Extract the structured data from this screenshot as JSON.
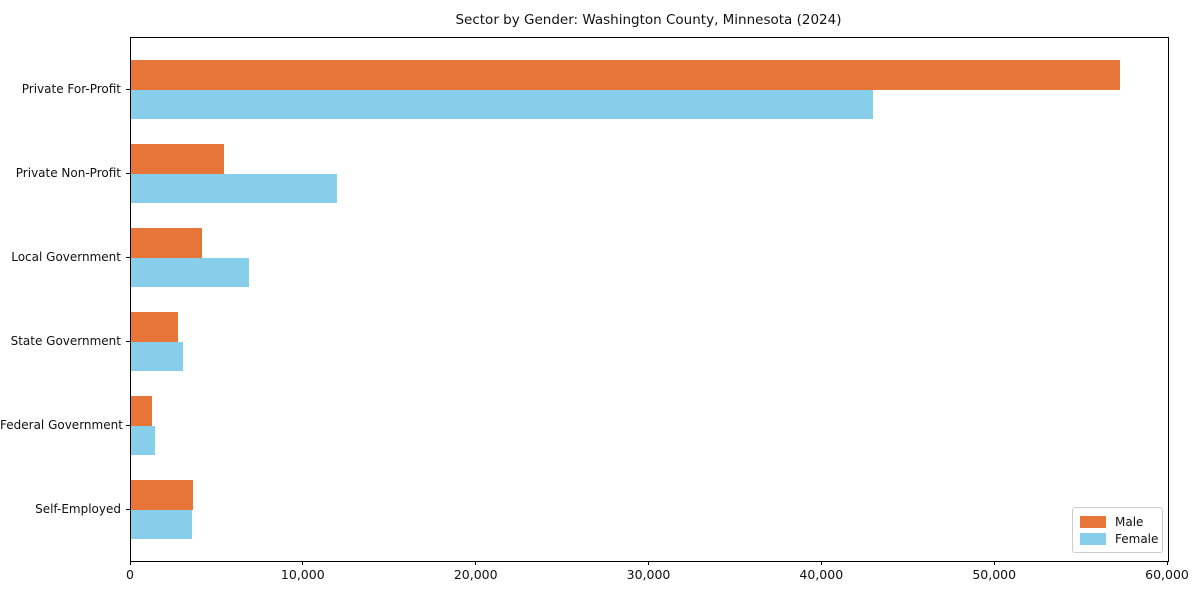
{
  "chart_data": {
    "type": "bar",
    "orientation": "horizontal",
    "title": "Sector by Gender: Washington County, Minnesota (2024)",
    "xlabel": "",
    "ylabel": "",
    "categories": [
      "Private For-Profit",
      "Private Non-Profit",
      "Local Government",
      "State Government",
      "Federal Government",
      "Self-Employed"
    ],
    "series": [
      {
        "name": "Male",
        "color": "#E8763A",
        "values": [
          57200,
          5400,
          4100,
          2700,
          1200,
          3600
        ]
      },
      {
        "name": "Female",
        "color": "#87CEEB",
        "values": [
          42900,
          11900,
          6800,
          3000,
          1400,
          3500
        ]
      }
    ],
    "xlim": [
      0,
      60000
    ],
    "x_ticks": [
      0,
      10000,
      20000,
      30000,
      40000,
      50000,
      60000
    ],
    "x_tick_labels": [
      "0",
      "10,000",
      "20,000",
      "30,000",
      "40,000",
      "50,000",
      "60,000"
    ],
    "grid": false,
    "legend_position": "lower right",
    "frame": true
  },
  "colors": {
    "male": "#E8763A",
    "female": "#87CEEB",
    "spine": "#000000",
    "background": "#ffffff",
    "legend_border": "#cccccc"
  }
}
